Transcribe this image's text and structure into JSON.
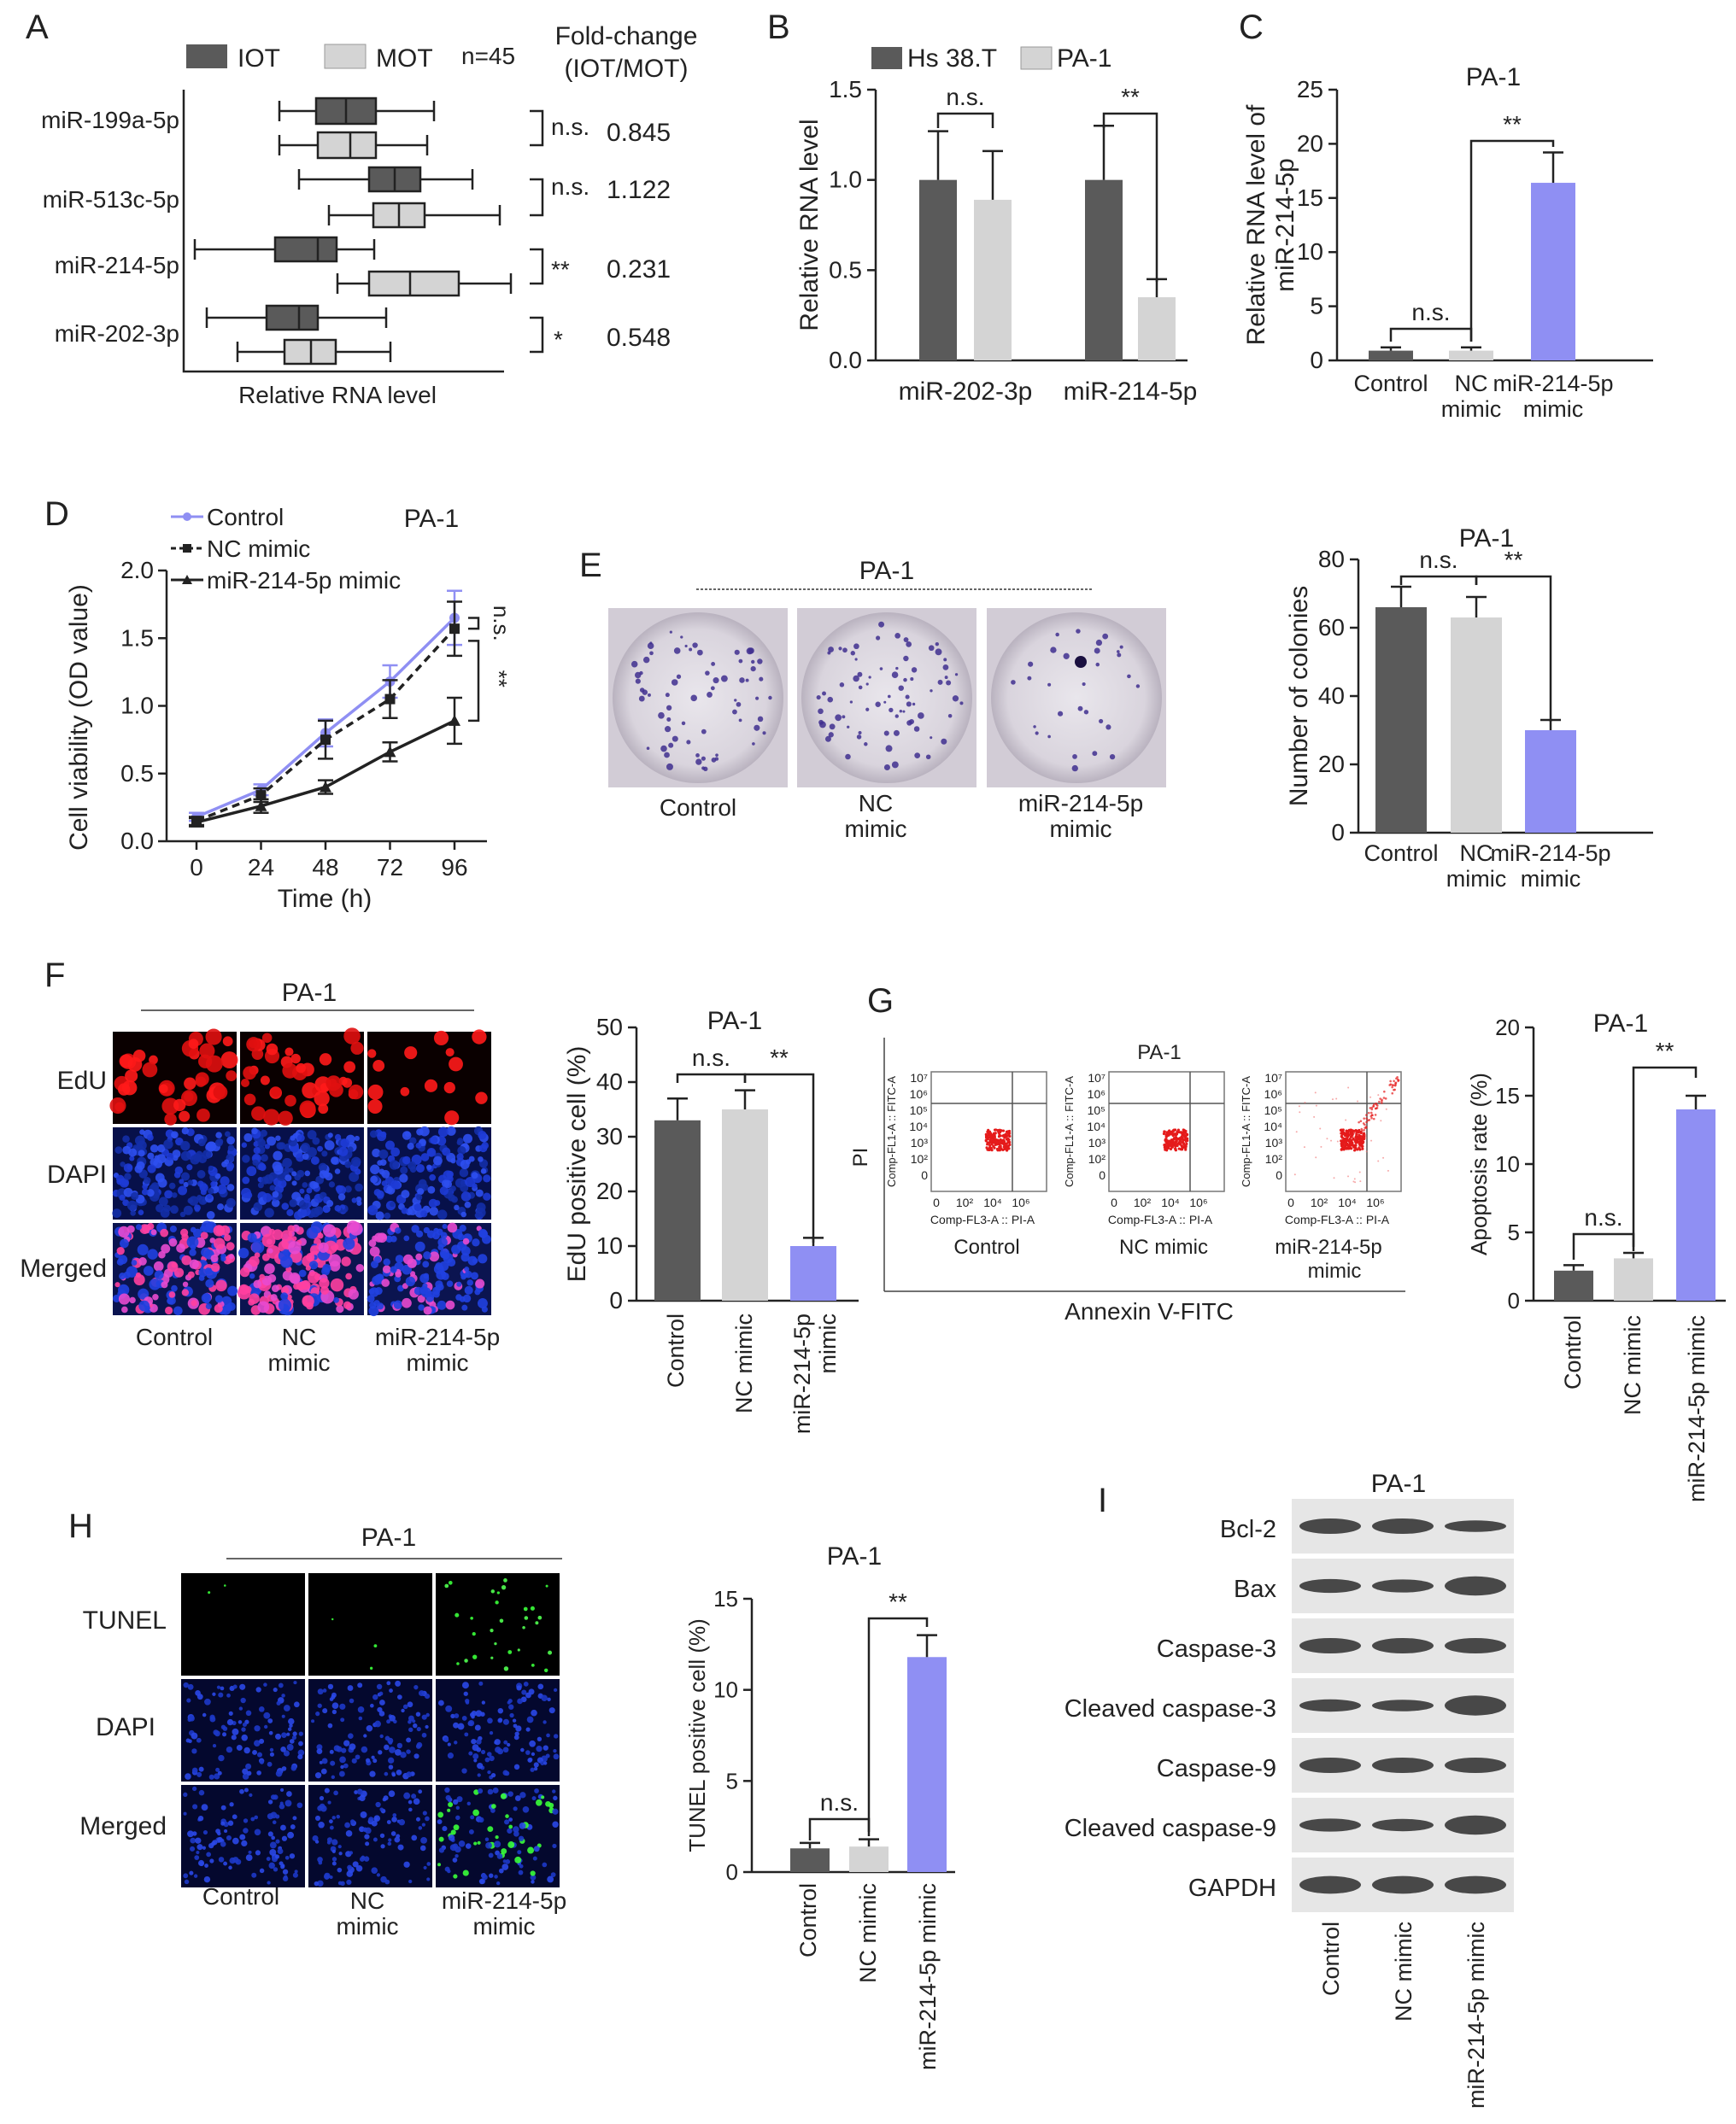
{
  "panels": {
    "A": {
      "letter": "A"
    },
    "B": {
      "letter": "B"
    },
    "C": {
      "letter": "C"
    },
    "D": {
      "letter": "D"
    },
    "E": {
      "letter": "E"
    },
    "F": {
      "letter": "F"
    },
    "G": {
      "letter": "G"
    },
    "H": {
      "letter": "H"
    },
    "I": {
      "letter": "I"
    }
  },
  "colors": {
    "dark": "#5a5a5a",
    "light": "#d4d4d4",
    "mimic": "#8f8ff3",
    "ink": "#222222"
  },
  "panelA": {
    "legend_iot": "IOT",
    "legend_mot": "MOT",
    "n": "n=45",
    "fold_title_1": "Fold-change",
    "fold_title_2": "(IOT/MOT)",
    "xlabel": "Relative RNA level",
    "rows": [
      {
        "label": "miR-199a-5p",
        "sig": "n.s.",
        "fold": "0.845"
      },
      {
        "label": "miR-513c-5p",
        "sig": "n.s.",
        "fold": "1.122"
      },
      {
        "label": "miR-214-5p",
        "sig": "**",
        "fold": "0.231"
      },
      {
        "label": "miR-202-3p",
        "sig": "*",
        "fold": "0.548"
      }
    ]
  },
  "chart_data": [
    {
      "panel": "B",
      "type": "bar",
      "ylabel": "Relative RNA level",
      "ylim": [
        0,
        1.5
      ],
      "yticks": [
        "0.0",
        "0.5",
        "1.0",
        "1.5"
      ],
      "categories": [
        "miR-202-3p",
        "miR-214-5p"
      ],
      "series": [
        {
          "name": "Hs 38.T",
          "values": [
            1.0,
            1.0
          ],
          "err": [
            0.27,
            0.3
          ]
        },
        {
          "name": "PA-1",
          "values": [
            0.89,
            0.35
          ],
          "err": [
            0.27,
            0.1
          ]
        }
      ],
      "sig": [
        "n.s.",
        "**"
      ]
    },
    {
      "panel": "C",
      "type": "bar",
      "title": "PA-1",
      "ylabel_1": "Relative RNA level of",
      "ylabel_2": "miR-214-5p",
      "ylim": [
        0,
        25
      ],
      "yticks": [
        "0",
        "5",
        "10",
        "15",
        "20",
        "25"
      ],
      "categories": [
        "Control",
        "NC mimic",
        "miR-214-5p mimic"
      ],
      "values": [
        0.9,
        0.9,
        16.4
      ],
      "err": [
        0.3,
        0.3,
        2.8
      ],
      "sig": [
        "n.s.",
        "**"
      ]
    },
    {
      "panel": "D",
      "type": "line",
      "title": "PA-1",
      "xlabel": "Time (h)",
      "ylabel": "Cell viability (OD value)",
      "x": [
        0,
        24,
        48,
        72,
        96
      ],
      "xticks": [
        "0",
        "24",
        "48",
        "72",
        "96"
      ],
      "ylim": [
        0,
        2.0
      ],
      "yticks": [
        "0.0",
        "0.5",
        "1.0",
        "1.5",
        "2.0"
      ],
      "series": [
        {
          "name": "Control",
          "values": [
            0.18,
            0.38,
            0.8,
            1.18,
            1.65
          ],
          "err": [
            0.03,
            0.04,
            0.1,
            0.12,
            0.2
          ]
        },
        {
          "name": "NC mimic",
          "values": [
            0.15,
            0.34,
            0.75,
            1.05,
            1.57
          ],
          "err": [
            0.03,
            0.05,
            0.14,
            0.14,
            0.2
          ]
        },
        {
          "name": "miR-214-5p mimic",
          "values": [
            0.14,
            0.26,
            0.4,
            0.66,
            0.89
          ],
          "err": [
            0.03,
            0.05,
            0.05,
            0.07,
            0.17
          ]
        }
      ],
      "sig": [
        "n.s.",
        "**"
      ]
    },
    {
      "panel": "E",
      "type": "bar",
      "title": "PA-1",
      "ylabel": "Number of colonies",
      "ylim": [
        0,
        80
      ],
      "yticks": [
        "0",
        "20",
        "40",
        "60",
        "80"
      ],
      "categories": [
        "Control",
        "NC mimic",
        "miR-214-5p mimic"
      ],
      "values": [
        66,
        63,
        30
      ],
      "err": [
        6,
        6,
        3
      ],
      "sig": [
        "n.s.",
        "**"
      ]
    },
    {
      "panel": "F",
      "type": "bar",
      "title": "PA-1",
      "ylabel": "EdU positive cell (%)",
      "ylim": [
        0,
        50
      ],
      "yticks": [
        "0",
        "10",
        "20",
        "30",
        "40",
        "50"
      ],
      "categories": [
        "Control",
        "NC mimic",
        "miR-214-5p mimic"
      ],
      "values": [
        33,
        35,
        10
      ],
      "err": [
        4,
        3.5,
        1.5
      ],
      "sig": [
        "n.s.",
        "**"
      ]
    },
    {
      "panel": "G",
      "type": "bar",
      "title": "PA-1",
      "ylabel": "Apoptosis rate (%)",
      "ylim": [
        0,
        20
      ],
      "yticks": [
        "0",
        "5",
        "10",
        "15",
        "20"
      ],
      "categories": [
        "Control",
        "NC mimic",
        "miR-214-5p mimic"
      ],
      "values": [
        2.2,
        3.1,
        14.0
      ],
      "err": [
        0.4,
        0.4,
        1.0
      ],
      "sig": [
        "n.s.",
        "**"
      ]
    },
    {
      "panel": "H",
      "type": "bar",
      "title": "PA-1",
      "ylabel": "TUNEL positive cell (%)",
      "ylim": [
        0,
        15
      ],
      "yticks": [
        "0",
        "5",
        "10",
        "15"
      ],
      "categories": [
        "Control",
        "NC mimic",
        "miR-214-5p mimic"
      ],
      "values": [
        1.3,
        1.4,
        11.8
      ],
      "err": [
        0.3,
        0.4,
        1.2
      ],
      "sig": [
        "n.s.",
        "**"
      ]
    }
  ],
  "panelE": {
    "title": "PA-1",
    "labels": [
      "Control",
      "NC",
      "mimic",
      "miR-214-5p",
      "mimic"
    ]
  },
  "panelF": {
    "title": "PA-1",
    "rows": [
      "EdU",
      "DAPI",
      "Merged"
    ],
    "cols": [
      "Control",
      "NC",
      "mimic",
      "miR-214-5p",
      "mimic"
    ]
  },
  "panelG": {
    "title": "PA-1",
    "yaxis": "PI",
    "xaxis": "Annexin V-FITC",
    "fl1": "Comp-FL1-A :: FITC-A",
    "fl3": "Comp-FL3-A :: PI-A",
    "labels": [
      "Control",
      "NC mimic",
      "miR-214-5p",
      "mimic"
    ]
  },
  "panelH": {
    "title": "PA-1",
    "rows": [
      "TUNEL",
      "DAPI",
      "Merged"
    ],
    "cols": [
      "Control",
      "NC",
      "mimic",
      "miR-214-5p",
      "mimic"
    ]
  },
  "panelI": {
    "title": "PA-1",
    "proteins": [
      "Bcl-2",
      "Bax",
      "Caspase-3",
      "Cleaved caspase-3",
      "Caspase-9",
      "Cleaved caspase-9",
      "GAPDH"
    ],
    "lanes": [
      "Control",
      "NC mimic",
      "miR-214-5p mimic"
    ]
  }
}
